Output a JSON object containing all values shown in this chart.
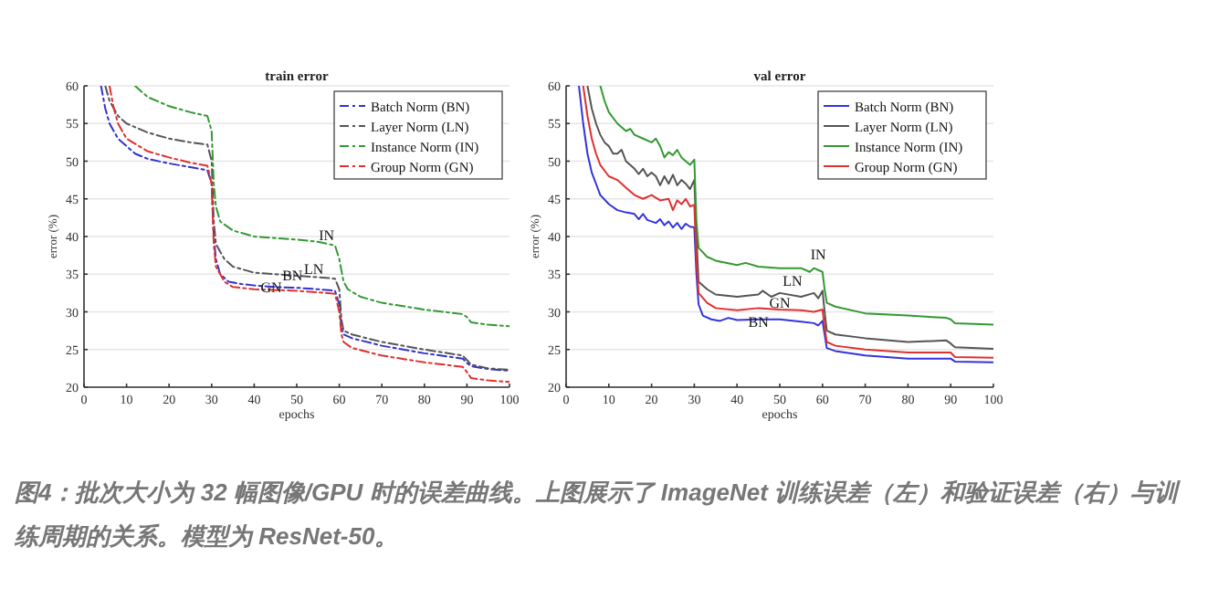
{
  "chart_data": [
    {
      "type": "line",
      "title": "train error",
      "xlabel": "epochs",
      "ylabel": "error (%)",
      "xlim": [
        0,
        100
      ],
      "ylim": [
        20,
        60
      ],
      "xticks": [
        0,
        10,
        20,
        30,
        40,
        50,
        60,
        70,
        80,
        90,
        100
      ],
      "yticks": [
        20,
        25,
        30,
        35,
        40,
        45,
        50,
        55,
        60
      ],
      "grid": "y",
      "legend": "top right",
      "line_style": "dashed",
      "series": [
        {
          "name": "Batch Norm (BN)",
          "color": "#3333cc",
          "x": [
            4,
            5,
            6,
            8,
            10,
            12,
            15,
            20,
            25,
            29,
            30,
            30.5,
            31,
            32,
            34,
            37,
            40,
            45,
            50,
            55,
            59,
            60,
            60.5,
            61,
            63,
            70,
            80,
            89,
            90,
            91,
            95,
            100
          ],
          "values": [
            60,
            57,
            55,
            53,
            52,
            51,
            50.3,
            49.7,
            49.2,
            48.8,
            47,
            40,
            37,
            35,
            34,
            33.7,
            33.5,
            33.3,
            33.2,
            33,
            32.8,
            31,
            28,
            27,
            26.5,
            25.5,
            24.5,
            23.8,
            23.2,
            22.8,
            22.4,
            22.2
          ]
        },
        {
          "name": "Layer Norm (LN)",
          "color": "#555555",
          "x": [
            5,
            6,
            8,
            10,
            15,
            20,
            25,
            29,
            30,
            30.5,
            31,
            33,
            35,
            40,
            50,
            55,
            59,
            60,
            60.5,
            61,
            63,
            70,
            80,
            89,
            90,
            91,
            95,
            100
          ],
          "values": [
            60,
            58,
            56,
            55,
            53.8,
            53,
            52.5,
            52.2,
            50,
            42,
            39,
            37,
            36,
            35.2,
            34.8,
            34.6,
            34.4,
            33,
            29,
            27.5,
            27,
            26,
            25,
            24.2,
            23.6,
            23,
            22.5,
            22.3
          ]
        },
        {
          "name": "Instance Norm (IN)",
          "color": "#339933",
          "x": [
            12,
            15,
            20,
            25,
            29,
            30,
            30.5,
            31,
            32,
            35,
            40,
            50,
            55,
            59,
            60,
            61,
            62,
            65,
            70,
            80,
            89,
            90,
            91,
            95,
            100
          ],
          "values": [
            60,
            58.5,
            57.3,
            56.5,
            56,
            54,
            47,
            44,
            42,
            40.8,
            40,
            39.6,
            39.3,
            38.8,
            37,
            34,
            33,
            32,
            31.2,
            30.3,
            29.7,
            29.3,
            28.6,
            28.3,
            28.1
          ]
        },
        {
          "name": "Group Norm (GN)",
          "color": "#e03030",
          "x": [
            6,
            7,
            8,
            10,
            15,
            20,
            25,
            29,
            30,
            30.5,
            31,
            33,
            35,
            40,
            50,
            55,
            59,
            60,
            60.5,
            61,
            63,
            70,
            80,
            89,
            90,
            91,
            95,
            100
          ],
          "values": [
            60,
            57,
            55,
            53,
            51.3,
            50.5,
            49.8,
            49.4,
            47,
            39,
            36,
            34,
            33.3,
            33,
            32.8,
            32.6,
            32.4,
            30,
            27,
            26,
            25.2,
            24.2,
            23.3,
            22.7,
            22,
            21.2,
            20.9,
            20.7
          ]
        }
      ],
      "annotations": [
        {
          "text": "IN",
          "x": 57,
          "y": 39.5
        },
        {
          "text": "LN",
          "x": 54,
          "y": 35
        },
        {
          "text": "BN",
          "x": 49,
          "y": 34.2
        },
        {
          "text": "GN",
          "x": 44,
          "y": 32.6
        },
        "图4：批次大小为 32 幅图像/GPU 时的误差曲线。上图展示了 ImageNet 训练误差（左）和验证误差（右）与训练周期的关系。模型为 ResNet-50。"
      ]
    },
    {
      "type": "line",
      "title": "val error",
      "xlabel": "epochs",
      "ylabel": "error (%)",
      "xlim": [
        0,
        100
      ],
      "ylim": [
        20,
        60
      ],
      "xticks": [
        0,
        10,
        20,
        30,
        40,
        50,
        60,
        70,
        80,
        90,
        100
      ],
      "yticks": [
        20,
        25,
        30,
        35,
        40,
        45,
        50,
        55,
        60
      ],
      "grid": "y",
      "legend": "top right",
      "line_style": "solid",
      "series": [
        {
          "name": "Batch Norm (BN)",
          "color": "#3333dd",
          "x": [
            3,
            4,
            5,
            6,
            7,
            8,
            10,
            12,
            14,
            16,
            17,
            18,
            19,
            21,
            22,
            23,
            24,
            25,
            26,
            27,
            28,
            29,
            30,
            30.5,
            31,
            32,
            34,
            36,
            38,
            40,
            45,
            50,
            55,
            58,
            59,
            60,
            60.5,
            61,
            63,
            70,
            80,
            90,
            91,
            100
          ],
          "values": [
            60,
            55,
            51,
            48.5,
            47,
            45.5,
            44.3,
            43.5,
            43.2,
            43,
            42.3,
            43,
            42.2,
            41.8,
            42.3,
            41.5,
            42,
            41.2,
            41.8,
            41,
            41.7,
            41.3,
            41.2,
            35,
            31,
            29.5,
            29,
            28.8,
            29.2,
            28.9,
            29,
            29,
            28.7,
            28.5,
            28.2,
            28.8,
            27,
            25.2,
            24.8,
            24.2,
            23.8,
            23.8,
            23.4,
            23.3
          ]
        },
        {
          "name": "Layer Norm (LN)",
          "color": "#555555",
          "x": [
            5,
            6,
            7,
            8,
            9,
            10,
            11,
            12,
            13,
            14,
            16,
            17,
            18,
            19,
            20,
            21,
            22,
            23,
            24,
            25,
            26,
            27,
            28,
            29,
            30,
            30.5,
            31,
            33,
            35,
            40,
            45,
            46,
            48,
            50,
            55,
            58,
            59,
            60,
            60.5,
            61,
            63,
            70,
            80,
            89,
            90,
            91,
            100
          ],
          "values": [
            60,
            57,
            55,
            53.5,
            52.5,
            52,
            51,
            51,
            51.5,
            50,
            49,
            48.3,
            49,
            48,
            48.5,
            48,
            46.8,
            48,
            47,
            48.2,
            46.8,
            47.5,
            47,
            46.3,
            47.5,
            40,
            34,
            33,
            32.3,
            32,
            32.3,
            32.8,
            32,
            32.5,
            32,
            32.5,
            31.8,
            32.8,
            30,
            27.5,
            27,
            26.5,
            26,
            26.2,
            25.8,
            25.3,
            25.1
          ]
        },
        {
          "name": "Instance Norm (IN)",
          "color": "#339933",
          "x": [
            8,
            9,
            10,
            12,
            14,
            15,
            16,
            18,
            20,
            21,
            22,
            23,
            24,
            25,
            26,
            27,
            28,
            29,
            30,
            30.5,
            31,
            33,
            35,
            40,
            42,
            45,
            50,
            55,
            57,
            58,
            60,
            60.5,
            61,
            63,
            70,
            80,
            89,
            90,
            91,
            100
          ],
          "values": [
            60,
            58,
            56.5,
            55,
            54,
            54.3,
            53.5,
            53,
            52.5,
            53,
            52,
            50.5,
            51.2,
            50.8,
            51.5,
            50.5,
            50,
            49.5,
            50.2,
            42,
            38.5,
            37.3,
            36.8,
            36.2,
            36.5,
            36,
            35.8,
            35.8,
            35.3,
            35.8,
            35.3,
            33,
            31.2,
            30.7,
            29.8,
            29.5,
            29.2,
            29,
            28.5,
            28.3
          ]
        },
        {
          "name": "Group Norm (GN)",
          "color": "#e03030",
          "x": [
            4,
            5,
            6,
            7,
            8,
            10,
            12,
            14,
            16,
            18,
            20,
            22,
            24,
            25,
            26,
            27,
            28,
            29,
            30,
            30.5,
            31,
            33,
            35,
            40,
            45,
            50,
            55,
            58,
            60,
            60.5,
            61,
            63,
            70,
            80,
            90,
            91,
            100
          ],
          "values": [
            60,
            56,
            53,
            51,
            49.5,
            48,
            47.5,
            46.5,
            45.5,
            45,
            45.5,
            44.8,
            45,
            43.5,
            44.8,
            44.3,
            45,
            44,
            44.2,
            37,
            32.5,
            31.2,
            30.5,
            30.2,
            30.5,
            30.3,
            30.2,
            30,
            30.3,
            28,
            26,
            25.5,
            25,
            24.6,
            24.6,
            24,
            23.9
          ]
        }
      ],
      "annotations": [
        {
          "text": "IN",
          "x": 59,
          "y": 37
        },
        {
          "text": "LN",
          "x": 53,
          "y": 33.5
        },
        {
          "text": "GN",
          "x": 50,
          "y": 30.6
        },
        {
          "text": "BN",
          "x": 45,
          "y": 28
        }
      ]
    }
  ]
}
